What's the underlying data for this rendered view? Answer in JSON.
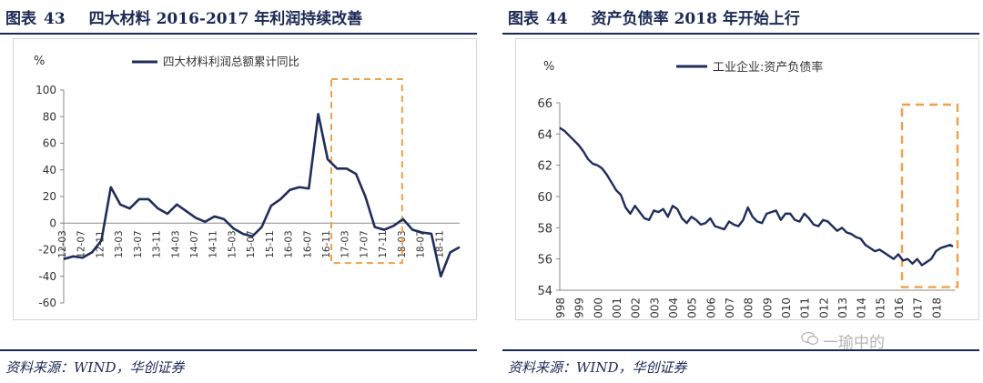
{
  "left": {
    "fig_label": "图表",
    "fig_num": "43",
    "fig_title": "四大材料 2016-2017 年利润持续改善",
    "source": "资料来源：WIND，华创证券"
  },
  "right": {
    "fig_label": "图表",
    "fig_num": "44",
    "fig_title": "资产负债率 2018 年开始上行",
    "source": "资料来源：WIND，华创证券"
  },
  "watermark": "一瑜中的",
  "colors": {
    "series": "#1f2d5c",
    "highlight": "#f0a04b",
    "rule": "#1b2a55"
  },
  "chart_data": [
    {
      "type": "line",
      "ylabel": "%",
      "ylim": [
        -60,
        100
      ],
      "yticks": [
        -60,
        -40,
        -20,
        0,
        20,
        40,
        60,
        80,
        100
      ],
      "xticks": [
        "12-03",
        "12-07",
        "12-11",
        "13-03",
        "13-07",
        "13-11",
        "14-03",
        "14-07",
        "14-11",
        "15-03",
        "15-07",
        "15-11",
        "16-03",
        "16-07",
        "16-11",
        "17-03",
        "17-07",
        "17-11",
        "18-03",
        "18-07",
        "18-11"
      ],
      "legend": "top-center",
      "grid": false,
      "highlight_range": [
        "16-11",
        "18-03"
      ],
      "series": [
        {
          "name": "四大材料利润总额累计同比",
          "x": [
            "12-03",
            "12-05",
            "12-07",
            "12-09",
            "12-11",
            "13-01",
            "13-03",
            "13-05",
            "13-07",
            "13-09",
            "13-11",
            "14-01",
            "14-03",
            "14-05",
            "14-07",
            "14-09",
            "14-11",
            "15-01",
            "15-03",
            "15-05",
            "15-07",
            "15-09",
            "15-11",
            "16-01",
            "16-03",
            "16-05",
            "16-07",
            "16-09",
            "16-11",
            "17-01",
            "17-03",
            "17-05",
            "17-07",
            "17-09",
            "17-11",
            "18-01",
            "18-03",
            "18-05",
            "18-07",
            "18-09",
            "18-11",
            "19-01",
            "19-03"
          ],
          "values": [
            -27,
            -25,
            -26,
            -22,
            -13,
            27,
            14,
            11,
            18,
            18,
            11,
            7,
            14,
            9,
            4,
            1,
            5,
            3,
            -4,
            -8,
            -10,
            -3,
            13,
            18,
            25,
            27,
            26,
            82,
            48,
            41,
            41,
            37,
            20,
            -3,
            -5,
            -2,
            3,
            -5,
            -7,
            -8,
            -40,
            -22,
            -18
          ]
        }
      ]
    },
    {
      "type": "line",
      "ylabel": "%",
      "ylim": [
        54,
        66
      ],
      "yticks": [
        54,
        56,
        58,
        60,
        62,
        64,
        66
      ],
      "xticks": [
        "1998",
        "1999",
        "2000",
        "2001",
        "2002",
        "2003",
        "2004",
        "2005",
        "2006",
        "2007",
        "2008",
        "2009",
        "2010",
        "2011",
        "2012",
        "2013",
        "2014",
        "2015",
        "2016",
        "2017",
        "2018"
      ],
      "legend": "top-center",
      "grid": false,
      "highlight_range": [
        "2016",
        "2019"
      ],
      "series": [
        {
          "name": "工业企业:资产负债率",
          "x": [
            1998.0,
            1998.25,
            1998.5,
            1998.75,
            1999.0,
            1999.25,
            1999.5,
            1999.75,
            2000.0,
            2000.25,
            2000.5,
            2000.75,
            2001.0,
            2001.25,
            2001.5,
            2001.75,
            2002.0,
            2002.25,
            2002.5,
            2002.75,
            2003.0,
            2003.25,
            2003.5,
            2003.75,
            2004.0,
            2004.25,
            2004.5,
            2004.75,
            2005.0,
            2005.25,
            2005.5,
            2005.75,
            2006.0,
            2006.25,
            2006.5,
            2006.75,
            2007.0,
            2007.25,
            2007.5,
            2007.75,
            2008.0,
            2008.25,
            2008.5,
            2008.75,
            2009.0,
            2009.25,
            2009.5,
            2009.75,
            2010.0,
            2010.25,
            2010.5,
            2010.75,
            2011.0,
            2011.25,
            2011.5,
            2011.75,
            2012.0,
            2012.25,
            2012.5,
            2012.75,
            2013.0,
            2013.25,
            2013.5,
            2013.75,
            2014.0,
            2014.25,
            2014.5,
            2014.75,
            2015.0,
            2015.25,
            2015.5,
            2015.75,
            2016.0,
            2016.25,
            2016.5,
            2016.75,
            2017.0,
            2017.25,
            2017.5,
            2017.75,
            2018.0,
            2018.25,
            2018.5,
            2018.75,
            2018.9
          ],
          "values": [
            64.4,
            64.2,
            63.9,
            63.6,
            63.3,
            62.9,
            62.4,
            62.1,
            62.0,
            61.8,
            61.4,
            60.9,
            60.4,
            60.1,
            59.3,
            58.9,
            59.4,
            59.0,
            58.6,
            58.5,
            59.1,
            59.0,
            59.2,
            58.7,
            59.4,
            59.2,
            58.6,
            58.3,
            58.7,
            58.5,
            58.2,
            58.3,
            58.6,
            58.1,
            58.0,
            57.9,
            58.4,
            58.2,
            58.1,
            58.5,
            59.3,
            58.7,
            58.4,
            58.3,
            58.9,
            59.0,
            59.1,
            58.5,
            58.9,
            58.9,
            58.5,
            58.4,
            58.9,
            58.6,
            58.2,
            58.1,
            58.5,
            58.4,
            58.1,
            57.8,
            58.0,
            57.7,
            57.6,
            57.4,
            57.3,
            56.9,
            56.7,
            56.5,
            56.6,
            56.4,
            56.2,
            56.0,
            56.3,
            55.9,
            56.0,
            55.7,
            56.0,
            55.6,
            55.8,
            56.0,
            56.5,
            56.7,
            56.8,
            56.9,
            56.8
          ]
        }
      ]
    }
  ]
}
